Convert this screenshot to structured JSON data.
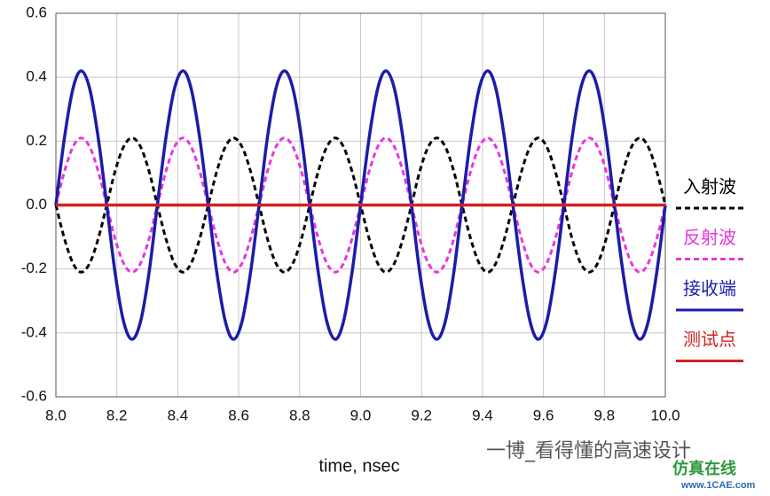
{
  "chart_data": {
    "type": "line",
    "x_label": "time, nsec",
    "x": [
      8,
      8.028,
      8.056,
      8.083,
      8.111,
      8.139,
      8.167,
      8.194,
      8.222,
      8.25,
      8.278,
      8.306,
      8.333,
      8.361,
      8.389,
      8.417,
      8.444,
      8.472,
      8.5,
      8.528,
      8.556,
      8.583,
      8.611,
      8.639,
      8.667,
      8.694,
      8.722,
      8.75,
      8.778,
      8.806,
      8.833,
      8.861,
      8.889,
      8.917,
      8.944,
      8.972,
      9,
      9.028,
      9.056,
      9.083,
      9.111,
      9.139,
      9.167,
      9.194,
      9.222,
      9.25,
      9.278,
      9.306,
      9.333,
      9.361,
      9.389,
      9.417,
      9.444,
      9.472,
      9.5,
      9.528,
      9.556,
      9.583,
      9.611,
      9.639,
      9.667,
      9.694,
      9.722,
      9.75,
      9.778,
      9.806,
      9.833,
      9.861,
      9.889,
      9.917,
      9.944,
      9.972,
      10
    ],
    "series": [
      {
        "name": "入射波",
        "color": "#000000",
        "style": "dashed",
        "values": [
          0,
          -0.105,
          -0.182,
          -0.21,
          -0.182,
          -0.105,
          0,
          0.105,
          0.182,
          0.21,
          0.182,
          0.105,
          0,
          -0.105,
          -0.182,
          -0.21,
          -0.182,
          -0.105,
          0,
          0.105,
          0.182,
          0.21,
          0.182,
          0.105,
          0,
          -0.105,
          -0.182,
          -0.21,
          -0.182,
          -0.105,
          0,
          0.105,
          0.182,
          0.21,
          0.182,
          0.105,
          0,
          -0.105,
          -0.182,
          -0.21,
          -0.182,
          -0.105,
          0,
          0.105,
          0.182,
          0.21,
          0.182,
          0.105,
          0,
          -0.105,
          -0.182,
          -0.21,
          -0.182,
          -0.105,
          0,
          0.105,
          0.182,
          0.21,
          0.182,
          0.105,
          0,
          -0.105,
          -0.182,
          -0.21,
          -0.182,
          -0.105,
          0,
          0.105,
          0.182,
          0.21,
          0.182,
          0.105,
          0
        ]
      },
      {
        "name": "反射波",
        "color": "#e835e0",
        "style": "dashed",
        "values": [
          0,
          0.105,
          0.182,
          0.21,
          0.182,
          0.105,
          0,
          -0.105,
          -0.182,
          -0.21,
          -0.182,
          -0.105,
          0,
          0.105,
          0.182,
          0.21,
          0.182,
          0.105,
          0,
          -0.105,
          -0.182,
          -0.21,
          -0.182,
          -0.105,
          0,
          0.105,
          0.182,
          0.21,
          0.182,
          0.105,
          0,
          -0.105,
          -0.182,
          -0.21,
          -0.182,
          -0.105,
          0,
          0.105,
          0.182,
          0.21,
          0.182,
          0.105,
          0,
          -0.105,
          -0.182,
          -0.21,
          -0.182,
          -0.105,
          0,
          0.105,
          0.182,
          0.21,
          0.182,
          0.105,
          0,
          -0.105,
          -0.182,
          -0.21,
          -0.182,
          -0.105,
          0,
          0.105,
          0.182,
          0.21,
          0.182,
          0.105,
          0,
          -0.105,
          -0.182,
          -0.21,
          -0.182,
          -0.105,
          0
        ]
      },
      {
        "name": "接收端",
        "color": "#1c1ca8",
        "style": "solid",
        "values": [
          0,
          0.21,
          0.364,
          0.42,
          0.364,
          0.21,
          0,
          -0.21,
          -0.364,
          -0.42,
          -0.364,
          -0.21,
          0,
          0.21,
          0.364,
          0.42,
          0.364,
          0.21,
          0,
          -0.21,
          -0.364,
          -0.42,
          -0.364,
          -0.21,
          0,
          0.21,
          0.364,
          0.42,
          0.364,
          0.21,
          0,
          -0.21,
          -0.364,
          -0.42,
          -0.364,
          -0.21,
          0,
          0.21,
          0.364,
          0.42,
          0.364,
          0.21,
          0,
          -0.21,
          -0.364,
          -0.42,
          -0.364,
          -0.21,
          0,
          0.21,
          0.364,
          0.42,
          0.364,
          0.21,
          0,
          -0.21,
          -0.364,
          -0.42,
          -0.364,
          -0.21,
          0,
          0.21,
          0.364,
          0.42,
          0.364,
          0.21,
          0,
          -0.21,
          -0.364,
          -0.42,
          -0.364,
          -0.21,
          0
        ]
      },
      {
        "name": "测试点",
        "color": "#d42020",
        "style": "solid",
        "values": [
          0,
          0,
          0,
          0,
          0,
          0,
          0,
          0,
          0,
          0,
          0,
          0,
          0,
          0,
          0,
          0,
          0,
          0,
          0,
          0,
          0,
          0,
          0,
          0,
          0,
          0,
          0,
          0,
          0,
          0,
          0,
          0,
          0,
          0,
          0,
          0,
          0,
          0,
          0,
          0,
          0,
          0,
          0,
          0,
          0,
          0,
          0,
          0,
          0,
          0,
          0,
          0,
          0,
          0,
          0,
          0,
          0,
          0,
          0,
          0,
          0,
          0,
          0,
          0,
          0,
          0,
          0,
          0,
          0,
          0,
          0,
          0,
          0
        ]
      }
    ],
    "xlim": [
      8,
      10
    ],
    "xticks": [
      {
        "value": 8,
        "label": "8.0"
      },
      8.2,
      8.4,
      8.6,
      8.8,
      {
        "value": 9,
        "label": "9.0"
      },
      9.2,
      9.4,
      9.6,
      9.8,
      {
        "value": 10,
        "label": "10.0"
      }
    ],
    "ylim": [
      -0.6,
      0.6
    ],
    "yticks": [
      -0.6,
      -0.4,
      -0.2,
      {
        "value": 0,
        "label": "0.0"
      },
      0.2,
      0.4,
      0.6
    ],
    "grid": true,
    "legend": "right",
    "annotations": [
      "一博_看得懂的高速设计",
      "仿真在线",
      "www.1CAE.com"
    ]
  }
}
